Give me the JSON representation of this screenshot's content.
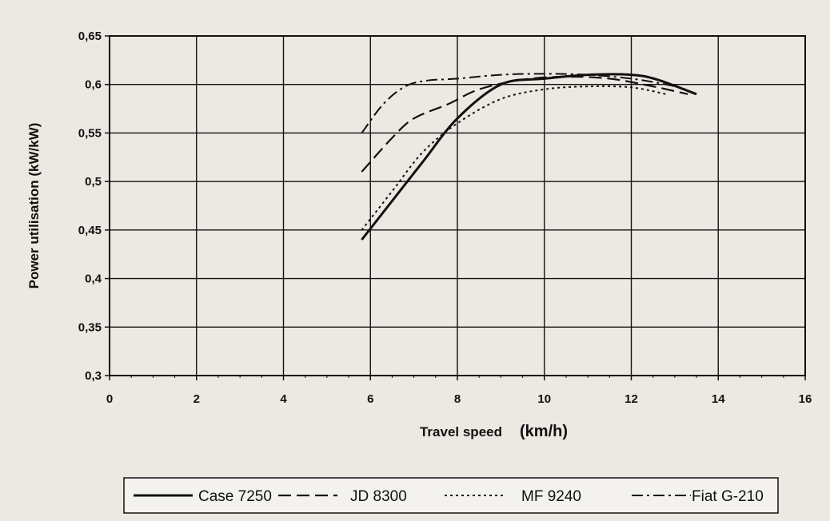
{
  "chart_data": {
    "type": "line",
    "xlabel": "Travel speed",
    "xlabel_unit": "(km/h)",
    "ylabel": "Power utilisation (kW/kW)",
    "xlim": [
      0,
      16
    ],
    "ylim": [
      0.3,
      0.65
    ],
    "x_ticks": [
      "0",
      "2",
      "4",
      "6",
      "8",
      "10",
      "12",
      "14",
      "16"
    ],
    "y_ticks": [
      "0,3",
      "0,35",
      "0,4",
      "0,45",
      "0,5",
      "0,55",
      "0,6",
      "0,65"
    ],
    "grid": true,
    "legend_position": "bottom",
    "series": [
      {
        "name": "Case 7250",
        "style": "solid",
        "x": [
          5.8,
          6.5,
          7.2,
          8.0,
          9.0,
          10.0,
          11.0,
          12.0,
          12.6,
          13.5
        ],
        "y": [
          0.44,
          0.48,
          0.52,
          0.565,
          0.6,
          0.606,
          0.61,
          0.61,
          0.605,
          0.59
        ]
      },
      {
        "name": "JD 8300",
        "style": "dashed",
        "x": [
          5.8,
          6.5,
          7.0,
          7.8,
          8.5,
          9.5,
          10.5,
          11.5,
          12.5,
          13.3
        ],
        "y": [
          0.51,
          0.545,
          0.565,
          0.58,
          0.595,
          0.605,
          0.608,
          0.606,
          0.598,
          0.59
        ]
      },
      {
        "name": "MF 9240",
        "style": "dotted",
        "x": [
          5.8,
          6.5,
          7.2,
          8.0,
          9.0,
          10.0,
          11.0,
          12.0,
          12.8
        ],
        "y": [
          0.45,
          0.49,
          0.53,
          0.56,
          0.585,
          0.595,
          0.598,
          0.597,
          0.59
        ]
      },
      {
        "name": "Fiat G-210",
        "style": "dashdot",
        "x": [
          5.8,
          6.3,
          6.8,
          7.3,
          8.0,
          9.0,
          10.0,
          11.0,
          12.0,
          12.8,
          13.2
        ],
        "y": [
          0.55,
          0.58,
          0.598,
          0.604,
          0.606,
          0.61,
          0.611,
          0.61,
          0.606,
          0.6,
          0.596
        ]
      }
    ]
  },
  "colors": {
    "line": "#111111",
    "grid": "#111111",
    "background": "#ece8e2"
  }
}
